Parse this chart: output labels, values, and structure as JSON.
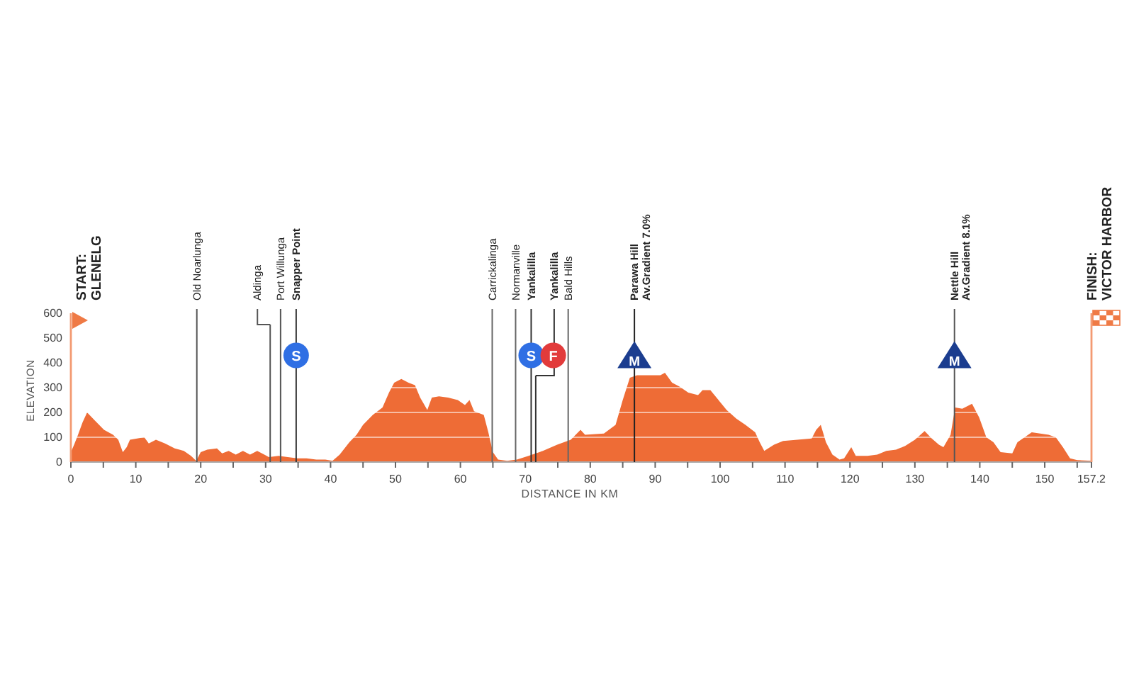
{
  "chart_data": {
    "type": "area",
    "xlabel": "DISTANCE IN KM",
    "ylabel": "ELEVATION",
    "xlim": [
      0,
      157.2
    ],
    "ylim": [
      0,
      600
    ],
    "xticks": [
      0,
      {
        "value": 5,
        "label": null
      },
      10,
      {
        "value": 15,
        "label": null
      },
      20,
      {
        "value": 25,
        "label": null
      },
      30,
      {
        "value": 35,
        "label": null
      },
      40,
      {
        "value": 45,
        "label": null
      },
      50,
      {
        "value": 55,
        "label": null
      },
      60,
      {
        "value": 65,
        "label": null
      },
      70,
      {
        "value": 75,
        "label": null
      },
      80,
      {
        "value": 85,
        "label": null
      },
      90,
      {
        "value": 95,
        "label": null
      },
      100,
      {
        "value": 105,
        "label": null
      },
      110,
      {
        "value": 115,
        "label": null
      },
      120,
      {
        "value": 125,
        "label": null
      },
      130,
      {
        "value": 135,
        "label": null
      },
      140,
      {
        "value": 145,
        "label": null
      },
      150,
      {
        "value": 155,
        "label": null
      },
      157.2
    ],
    "yticks": [
      0,
      100,
      200,
      300,
      400,
      500,
      600
    ],
    "grid": "y",
    "series": [
      {
        "color": "#ee6c36",
        "x": [
          0,
          0.5,
          1.1,
          1.8,
          2.5,
          3.6,
          5.1,
          6.5,
          7.3,
          8.0,
          8.6,
          9.1,
          10.2,
          11.3,
          12.0,
          13.1,
          14.5,
          16.0,
          17.4,
          18.5,
          19.3,
          20.0,
          21.0,
          22.5,
          23.3,
          24.3,
          25.4,
          26.5,
          27.6,
          28.7,
          29.8,
          30.5,
          32.0,
          33.4,
          34.9,
          36.3,
          37.8,
          39.2,
          40.3,
          41.4,
          42.9,
          44.0,
          45.0,
          46.5,
          48.0,
          49.0,
          49.8,
          50.9,
          52.0,
          53.0,
          53.8,
          54.9,
          55.6,
          56.7,
          58.1,
          59.6,
          60.7,
          61.4,
          62.1,
          63.6,
          64.3,
          65.0,
          65.8,
          67.2,
          68.7,
          70.5,
          72.7,
          74.9,
          77.0,
          78.5,
          79.2,
          82.1,
          83.9,
          85.0,
          86.1,
          87.2,
          89.4,
          90.8,
          91.5,
          92.6,
          93.7,
          95.1,
          96.6,
          97.3,
          98.5,
          99.6,
          101.0,
          102.5,
          103.9,
          105.4,
          106.1,
          106.8,
          108.3,
          109.7,
          111.9,
          114.1,
          114.8,
          115.5,
          116.3,
          117.3,
          118.4,
          119.1,
          120.2,
          120.9,
          122.7,
          124.2,
          125.6,
          127.1,
          128.5,
          130.0,
          131.5,
          132.6,
          133.7,
          134.4,
          135.5,
          136.2,
          137.3,
          138.8,
          139.9,
          141.0,
          142.1,
          143.2,
          145.0,
          145.8,
          146.9,
          148.0,
          150.6,
          151.7,
          152.8,
          153.9,
          155.0,
          157.2
        ],
        "values": [
          40,
          70,
          110,
          160,
          200,
          170,
          130,
          110,
          90,
          40,
          60,
          90,
          95,
          100,
          75,
          90,
          75,
          55,
          45,
          25,
          5,
          40,
          50,
          55,
          35,
          45,
          30,
          45,
          30,
          45,
          30,
          20,
          25,
          20,
          15,
          15,
          10,
          10,
          5,
          30,
          80,
          110,
          150,
          190,
          220,
          280,
          320,
          335,
          320,
          310,
          260,
          210,
          260,
          265,
          260,
          250,
          230,
          250,
          205,
          190,
          120,
          40,
          10,
          5,
          10,
          25,
          45,
          70,
          90,
          130,
          110,
          115,
          150,
          250,
          340,
          350,
          350,
          350,
          360,
          320,
          305,
          280,
          270,
          290,
          290,
          255,
          210,
          175,
          150,
          120,
          80,
          45,
          70,
          85,
          90,
          95,
          130,
          150,
          80,
          30,
          10,
          15,
          60,
          25,
          25,
          30,
          45,
          50,
          65,
          90,
          125,
          95,
          70,
          60,
          110,
          220,
          215,
          235,
          180,
          100,
          80,
          40,
          35,
          80,
          100,
          120,
          110,
          100,
          60,
          15,
          8,
          5
        ]
      }
    ],
    "ref_lines": [
      {
        "axis": "x",
        "value": 19.4,
        "label": "Old Noarlunga",
        "color": "#555555"
      },
      {
        "axis": "x",
        "value": 30.7,
        "label": "Aldinga",
        "color": "#555555"
      },
      {
        "axis": "x",
        "value": 32.3,
        "label": "Port Willunga",
        "color": "#555555"
      },
      {
        "axis": "x",
        "value": 34.7,
        "label": "Snapper Point",
        "color": "#333333"
      },
      {
        "axis": "x",
        "value": 64.9,
        "label": "Carrickalinga",
        "color": "#666666"
      },
      {
        "axis": "x",
        "value": 68.5,
        "label": "Normanville",
        "color": "#666666"
      },
      {
        "axis": "x",
        "value": 70.9,
        "label": "Yankalilla",
        "color": "#333333"
      },
      {
        "axis": "x",
        "value": 71.6,
        "label": "Yankalilla",
        "color": "#333333"
      },
      {
        "axis": "x",
        "value": 76.6,
        "label": "Bald Hills",
        "color": "#666666"
      },
      {
        "axis": "x",
        "value": 86.8,
        "label": "Parawa Hill\nAv.Gradient 7.0%",
        "color": "#222222"
      },
      {
        "axis": "x",
        "value": 136.1,
        "label": "Nettle Hill\nAv.Gradient 8.1%",
        "color": "#555555"
      },
      {
        "axis": "x",
        "value": 157.2,
        "label": "FINISH:\nVICTOR HARBOR",
        "color": "#f39a72"
      }
    ],
    "annotations": [
      {
        "text": "S",
        "x": 34.7,
        "y": 430
      },
      {
        "text": "S",
        "x": 70.9,
        "y": 430
      },
      {
        "text": "F",
        "x": 74.3,
        "y": 430
      },
      {
        "text": "M",
        "x": 86.8,
        "y": 430
      },
      {
        "text": "M",
        "x": 136.1,
        "y": 430
      },
      "START:\nGLENELG"
    ]
  }
}
